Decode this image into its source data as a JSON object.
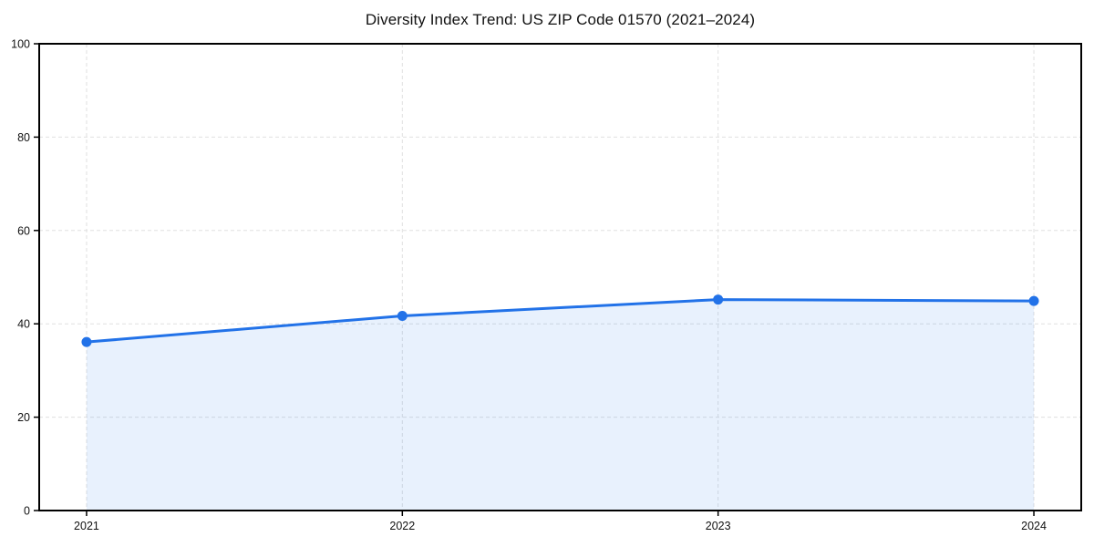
{
  "chart_data": {
    "type": "line",
    "title": "Diversity Index Trend: US ZIP Code 01570 (2021–2024)",
    "x": [
      "2021",
      "2022",
      "2023",
      "2024"
    ],
    "series": [
      {
        "name": "Diversity Index",
        "values": [
          36.1,
          41.7,
          45.2,
          44.9
        ]
      }
    ],
    "xlabel": "",
    "ylabel": "",
    "ylim": [
      0,
      100
    ],
    "yticks": [
      0,
      20,
      40,
      60,
      80,
      100
    ],
    "grid": "dashed both axes",
    "legend_position": "none",
    "area_fill_under_line": true,
    "style": {
      "line_color": "#2272e8",
      "marker_color": "#2272e8",
      "area_fill": "#2272e8",
      "area_opacity": 0.1,
      "grid_color": "#e0e0e0",
      "spine_color": "#000000",
      "tick_label_color": "#111111",
      "background": "#ffffff"
    }
  }
}
